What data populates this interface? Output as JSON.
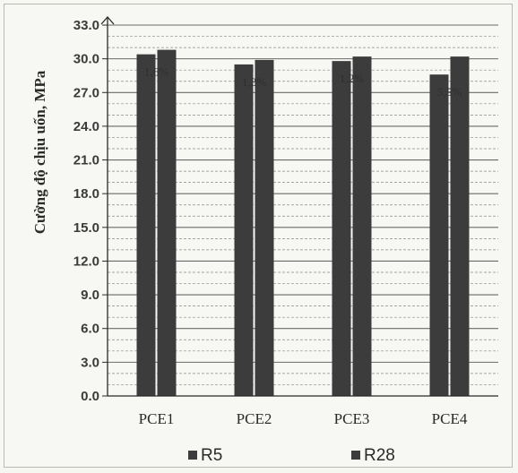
{
  "chart_data": {
    "type": "bar",
    "ylabel": "Cường độ chịu uốn, MPa",
    "ylim": [
      0,
      33
    ],
    "yticks": [
      "0.0",
      "3.0",
      "6.0",
      "9.0",
      "12.0",
      "15.0",
      "18.0",
      "21.0",
      "24.0",
      "27.0",
      "30.0",
      "33.0"
    ],
    "categories": [
      "PCE1",
      "PCE2",
      "PCE3",
      "PCE4"
    ],
    "series": [
      {
        "name": "R5",
        "values": [
          30.4,
          29.5,
          29.8,
          28.6
        ]
      },
      {
        "name": "R28",
        "values": [
          30.8,
          29.9,
          30.2,
          30.2
        ]
      }
    ],
    "data_labels": [
      "1,6%",
      "1,3%",
      "1,2%",
      "5,5%"
    ],
    "legend_position": "bottom",
    "grid": true,
    "colors": {
      "bar": "#3c3c3c",
      "grid": "#6a6a6a",
      "axis": "#2a2a2a"
    }
  }
}
